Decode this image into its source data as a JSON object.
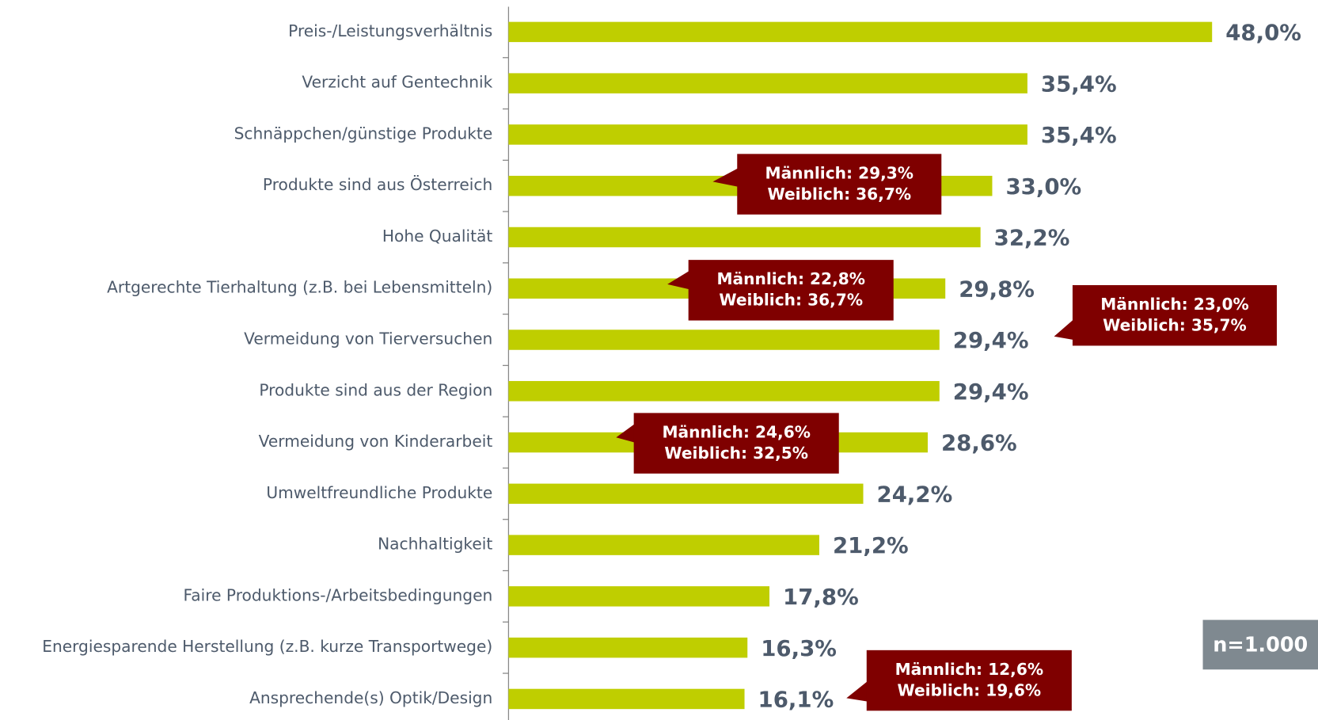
{
  "chart_data": {
    "type": "bar",
    "orientation": "horizontal",
    "categories": [
      "Preis-/Leistungsverhältnis",
      "Verzicht auf Gentechnik",
      "Schnäppchen/günstige Produkte",
      "Produkte sind aus Österreich",
      "Hohe Qualität",
      "Artgerechte Tierhaltung (z.B. bei Lebensmitteln)",
      "Vermeidung von Tierversuchen",
      "Produkte sind aus der Region",
      "Vermeidung von Kinderarbeit",
      "Umweltfreundliche Produkte",
      "Nachhaltigkeit",
      "Faire Produktions-/Arbeitsbedingungen",
      "Energiesparende Herstellung (z.B. kurze Transportwege)",
      "Ansprechende(s) Optik/Design"
    ],
    "values": [
      48.0,
      35.4,
      35.4,
      33.0,
      32.2,
      29.8,
      29.4,
      29.4,
      28.6,
      24.2,
      21.2,
      17.8,
      16.3,
      16.1
    ],
    "value_labels": [
      "48,0%",
      "35,4%",
      "35,4%",
      "33,0%",
      "32,2%",
      "29,8%",
      "29,4%",
      "29,4%",
      "28,6%",
      "24,2%",
      "21,2%",
      "17,8%",
      "16,3%",
      "16,1%"
    ],
    "color": "#bfce00",
    "xlim": [
      0,
      48
    ],
    "annotations": [
      {
        "lines": [
          "Männlich: 29,3%",
          "Weiblich: 36,7%"
        ]
      },
      {
        "lines": [
          "Männlich: 22,8%",
          "Weiblich: 36,7%"
        ]
      },
      {
        "lines": [
          "Männlich: 23,0%",
          "Weiblich: 35,7%"
        ]
      },
      {
        "lines": [
          "Männlich: 24,6%",
          "Weiblich: 32,5%"
        ]
      },
      {
        "lines": [
          "Männlich: 12,6%",
          "Weiblich: 19,6%"
        ]
      }
    ],
    "note": "n=1.000"
  }
}
